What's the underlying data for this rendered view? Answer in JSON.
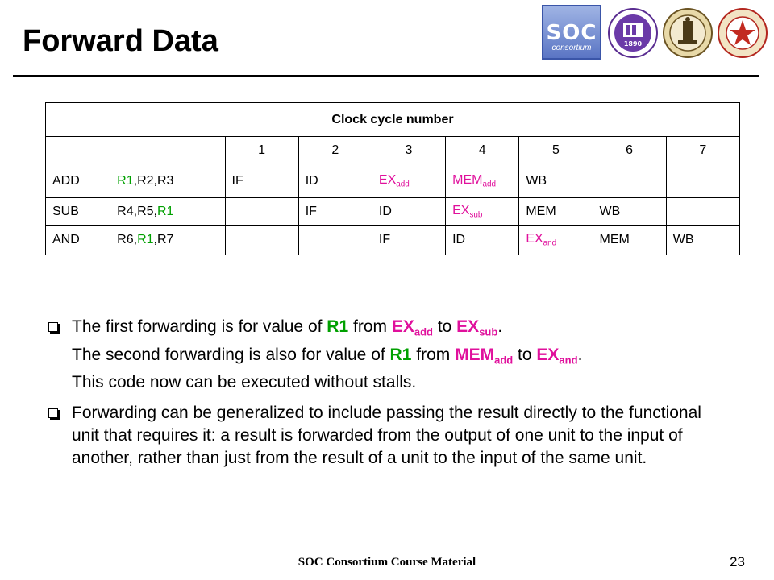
{
  "slide": {
    "title": "Forward Data",
    "footer": "SOC Consortium Course Material",
    "page_number": "23"
  },
  "logos": {
    "soc_text": "SOC",
    "soc_sub": "consortium",
    "seal1_text": "1890"
  },
  "table": {
    "header": "Clock cycle number",
    "cycles": [
      "1",
      "2",
      "3",
      "4",
      "5",
      "6",
      "7"
    ],
    "rows": [
      {
        "op": "ADD",
        "operands": [
          "R1",
          ",R2,R3"
        ],
        "stages": [
          "IF",
          "ID",
          "EX",
          "MEM",
          "WB",
          "",
          ""
        ],
        "subs": [
          "",
          "",
          "add",
          "add",
          "",
          "",
          ""
        ]
      },
      {
        "op": "SUB",
        "operands": [
          "R4,R5,",
          "R1"
        ],
        "stages": [
          "",
          "IF",
          "ID",
          "EX",
          "MEM",
          "WB",
          ""
        ],
        "subs": [
          "",
          "",
          "",
          "sub",
          "",
          "",
          ""
        ]
      },
      {
        "op": "AND",
        "operands": [
          "R6,",
          "R1",
          ",R7"
        ],
        "stages": [
          "",
          "",
          "IF",
          "ID",
          "EX",
          "MEM",
          "WB"
        ],
        "subs": [
          "",
          "",
          "",
          "",
          "and",
          "",
          ""
        ]
      }
    ]
  },
  "bullets": {
    "b1": {
      "t1": "The first forwarding is for value of ",
      "r1": "R1",
      "t2": " from ",
      "ex": "EX",
      "ex_sub": "add",
      "t3": " to ",
      "ex2": "EX",
      "ex2_sub": "sub",
      "t4": ".",
      "t5": "The second forwarding is also for value of ",
      "r1b": "R1",
      "t6": " from ",
      "mem": "MEM",
      "mem_sub": "add",
      "t7": " to ",
      "ex3": "EX",
      "ex3_sub": "and",
      "t8": ".",
      "t9": "This code now can be executed without stalls."
    },
    "b2": "Forwarding can be generalized to include passing the result directly to the functional unit that requires it: a result is forwarded from the output of one unit to the input of another, rather than just from the result of a unit to the input of the same unit."
  }
}
